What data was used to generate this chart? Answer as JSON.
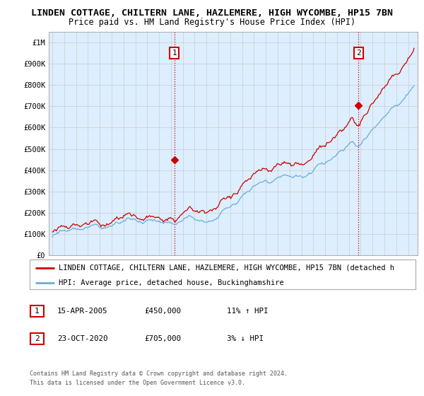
{
  "title": "LINDEN COTTAGE, CHILTERN LANE, HAZLEMERE, HIGH WYCOMBE, HP15 7BN",
  "subtitle": "Price paid vs. HM Land Registry's House Price Index (HPI)",
  "ylim": [
    0,
    1050000
  ],
  "yticks": [
    0,
    100000,
    200000,
    300000,
    400000,
    500000,
    600000,
    700000,
    800000,
    900000,
    1000000
  ],
  "ytick_labels": [
    "£0",
    "£100K",
    "£200K",
    "£300K",
    "£400K",
    "£500K",
    "£600K",
    "£700K",
    "£800K",
    "£900K",
    "£1M"
  ],
  "x_start_year": 1995,
  "x_end_year": 2025,
  "sale1_year": 2005.29,
  "sale1_price": 450000,
  "sale1_label": "1",
  "sale1_date": "15-APR-2005",
  "sale1_hpi_pct": "11%",
  "sale1_hpi_dir": "↑",
  "sale2_year": 2020.81,
  "sale2_price": 705000,
  "sale2_label": "2",
  "sale2_date": "23-OCT-2020",
  "sale2_hpi_pct": "3%",
  "sale2_hpi_dir": "↓",
  "hpi_line_color": "#6baed6",
  "price_line_color": "#cc0000",
  "marker_color": "#cc0000",
  "grid_color": "#cccccc",
  "plot_bg_color": "#ddeeff",
  "background_color": "#ffffff",
  "legend_label_red": "LINDEN COTTAGE, CHILTERN LANE, HAZLEMERE, HIGH WYCOMBE, HP15 7BN (detached h",
  "legend_label_blue": "HPI: Average price, detached house, Buckinghamshire",
  "footer1": "Contains HM Land Registry data © Crown copyright and database right 2024.",
  "footer2": "This data is licensed under the Open Government Licence v3.0.",
  "annotation_box_color": "#cc0000",
  "title_fontsize": 9.5,
  "subtitle_fontsize": 8.5,
  "axis_fontsize": 7.5,
  "legend_fontsize": 7.5
}
